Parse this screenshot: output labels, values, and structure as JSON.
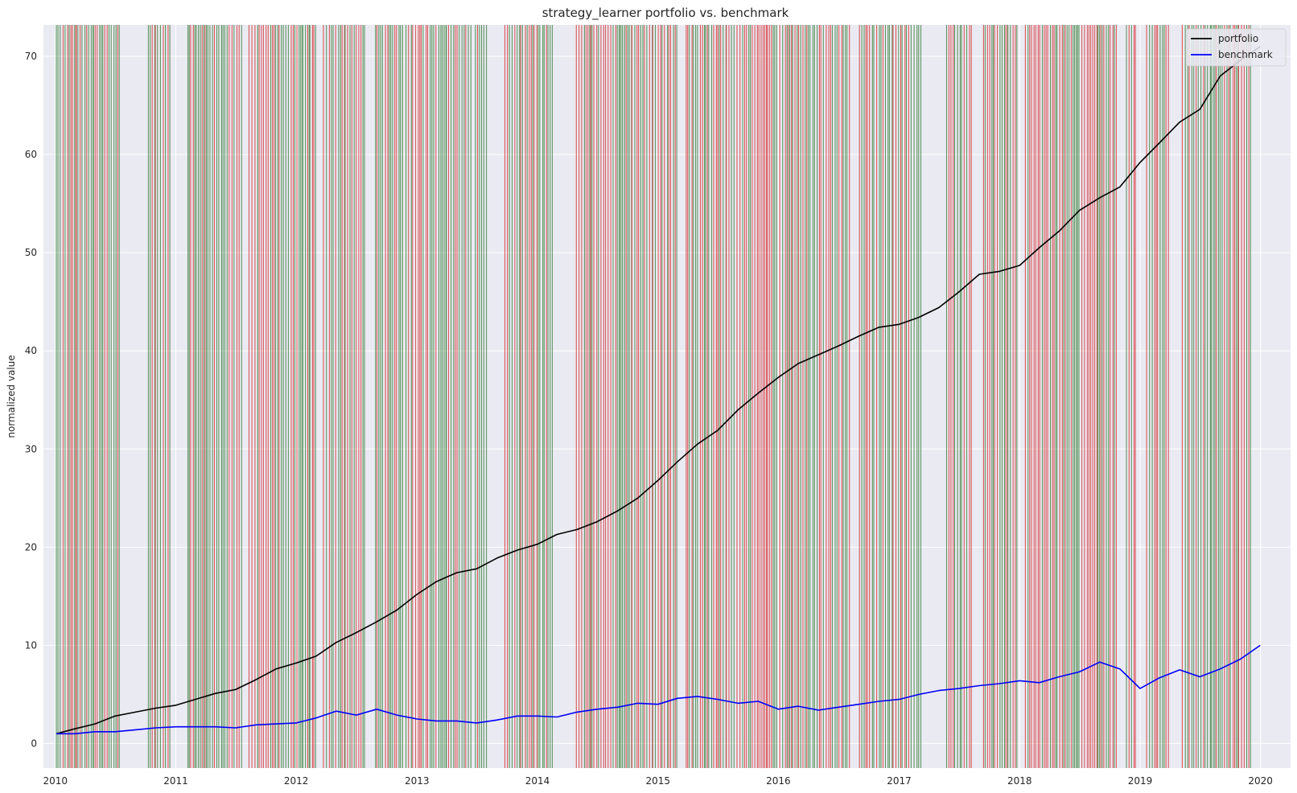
{
  "chart_data": {
    "type": "line",
    "title": "strategy_learner portfolio vs. benchmark",
    "xlabel": "",
    "ylabel": "normalized value",
    "xlim": [
      "2009-11-26",
      "2020-04-01"
    ],
    "ylim": [
      -2.5,
      73.2
    ],
    "x_ticks": [
      "2010",
      "2011",
      "2012",
      "2013",
      "2014",
      "2015",
      "2016",
      "2017",
      "2018",
      "2019",
      "2020"
    ],
    "y_ticks": [
      0,
      10,
      20,
      30,
      40,
      50,
      60,
      70
    ],
    "grid": true,
    "legend": "upper right",
    "background_color": "#eaeaf2",
    "series": [
      {
        "name": "portfolio",
        "color": "#000000",
        "x": [
          "2010-01-04",
          "2010-03-01",
          "2010-05-01",
          "2010-07-01",
          "2010-09-01",
          "2010-11-01",
          "2011-01-01",
          "2011-03-01",
          "2011-05-01",
          "2011-07-01",
          "2011-09-01",
          "2011-11-01",
          "2012-01-01",
          "2012-03-01",
          "2012-05-01",
          "2012-07-01",
          "2012-09-01",
          "2012-11-01",
          "2013-01-01",
          "2013-03-01",
          "2013-05-01",
          "2013-07-01",
          "2013-09-01",
          "2013-11-01",
          "2014-01-01",
          "2014-03-01",
          "2014-05-01",
          "2014-07-01",
          "2014-09-01",
          "2014-11-01",
          "2015-01-01",
          "2015-03-01",
          "2015-05-01",
          "2015-07-01",
          "2015-09-01",
          "2015-11-01",
          "2016-01-01",
          "2016-03-01",
          "2016-05-01",
          "2016-07-01",
          "2016-09-01",
          "2016-11-01",
          "2017-01-01",
          "2017-03-01",
          "2017-05-01",
          "2017-07-01",
          "2017-09-01",
          "2017-11-01",
          "2018-01-01",
          "2018-03-01",
          "2018-05-01",
          "2018-07-01",
          "2018-09-01",
          "2018-11-01",
          "2019-01-01",
          "2019-03-01",
          "2019-05-01",
          "2019-07-01",
          "2019-09-01",
          "2019-11-01",
          "2019-12-31"
        ],
        "y": [
          1.0,
          1.5,
          2.0,
          2.8,
          3.2,
          3.6,
          3.9,
          4.5,
          5.1,
          5.5,
          6.5,
          7.6,
          8.2,
          8.9,
          10.3,
          11.3,
          12.4,
          13.6,
          15.2,
          16.5,
          17.4,
          17.8,
          18.9,
          19.7,
          20.3,
          21.3,
          21.8,
          22.6,
          23.7,
          25.0,
          26.8,
          28.7,
          30.5,
          31.9,
          34.0,
          35.7,
          37.3,
          38.7,
          39.6,
          40.5,
          41.5,
          42.4,
          42.7,
          43.4,
          44.4,
          46.0,
          47.8,
          48.1,
          48.7,
          50.5,
          52.2,
          54.3,
          55.6,
          56.7,
          59.2,
          61.2,
          63.3,
          64.6,
          68.0,
          69.6,
          71.0
        ]
      },
      {
        "name": "benchmark",
        "color": "#0000ff",
        "x": [
          "2010-01-04",
          "2010-03-01",
          "2010-05-01",
          "2010-07-01",
          "2010-09-01",
          "2010-11-01",
          "2011-01-01",
          "2011-03-01",
          "2011-05-01",
          "2011-07-01",
          "2011-09-01",
          "2011-11-01",
          "2012-01-01",
          "2012-03-01",
          "2012-05-01",
          "2012-07-01",
          "2012-09-01",
          "2012-11-01",
          "2013-01-01",
          "2013-03-01",
          "2013-05-01",
          "2013-07-01",
          "2013-09-01",
          "2013-11-01",
          "2014-01-01",
          "2014-03-01",
          "2014-05-01",
          "2014-07-01",
          "2014-09-01",
          "2014-11-01",
          "2015-01-01",
          "2015-03-01",
          "2015-05-01",
          "2015-07-01",
          "2015-09-01",
          "2015-11-01",
          "2016-01-01",
          "2016-03-01",
          "2016-05-01",
          "2016-07-01",
          "2016-09-01",
          "2016-11-01",
          "2017-01-01",
          "2017-03-01",
          "2017-05-01",
          "2017-07-01",
          "2017-09-01",
          "2017-11-01",
          "2018-01-01",
          "2018-03-01",
          "2018-05-01",
          "2018-07-01",
          "2018-09-01",
          "2018-11-01",
          "2019-01-01",
          "2019-03-01",
          "2019-05-01",
          "2019-07-01",
          "2019-09-01",
          "2019-11-01",
          "2019-12-31"
        ],
        "y": [
          1.0,
          1.0,
          1.2,
          1.2,
          1.4,
          1.6,
          1.7,
          1.7,
          1.7,
          1.6,
          1.9,
          2.0,
          2.1,
          2.6,
          3.3,
          2.9,
          3.5,
          2.9,
          2.5,
          2.3,
          2.3,
          2.1,
          2.4,
          2.8,
          2.8,
          2.7,
          3.2,
          3.5,
          3.7,
          4.1,
          4.0,
          4.6,
          4.8,
          4.5,
          4.1,
          4.3,
          3.5,
          3.8,
          3.4,
          3.7,
          4.0,
          4.3,
          4.5,
          5.0,
          5.4,
          5.6,
          5.9,
          6.1,
          6.4,
          6.2,
          6.8,
          7.3,
          8.3,
          7.6,
          5.6,
          6.7,
          7.5,
          6.8,
          7.6,
          8.6,
          10.0
        ]
      }
    ],
    "buy_signal_color": "#2f7a2f",
    "sell_signal_color": "#d62728"
  }
}
